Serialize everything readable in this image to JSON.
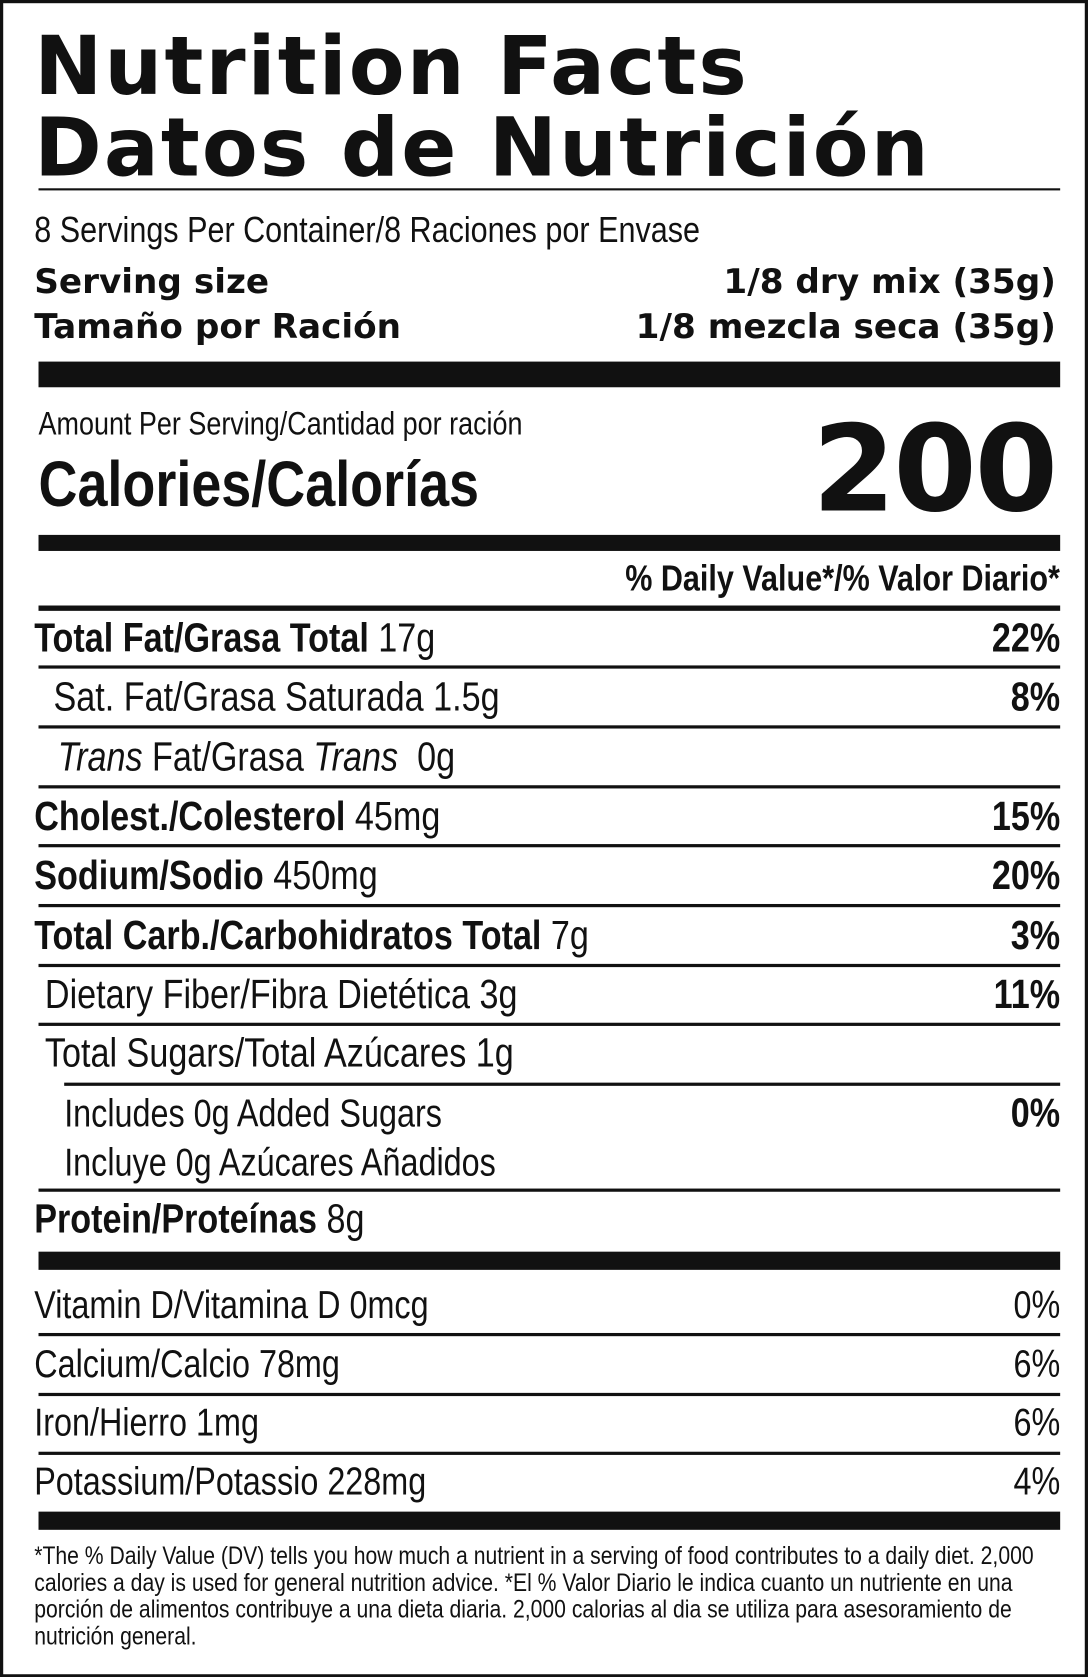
{
  "title_en": "Nutrition Facts",
  "title_es": "Datos de Nutrición",
  "servings": "8 Servings Per Container/8 Raciones por Envase",
  "serving_size": {
    "label": "Serving size",
    "value": "1/8 dry mix (35g)"
  },
  "tamano": {
    "label": "Tamaño por Ración",
    "value": "1/8 mezcla seca (35g)"
  },
  "amount_per_serving": "Amount Per Serving/Cantidad por ración",
  "calories_label": "Calories/Calorías",
  "calories_value": "200",
  "dv_header": "% Daily Value*/% Valor Diario*",
  "nutrients": [
    {
      "name": "Total Fat/Grasa Total",
      "amount": "17g",
      "dv": "22%"
    },
    {
      "name": "Sat. Fat/Grasa Saturada",
      "amount": "1.5g",
      "dv": "8%"
    },
    {
      "name_it": "Trans",
      "name_mid": " Fat/Grasa ",
      "name_it2": "Trans",
      "amount": "0g",
      "dv": ""
    },
    {
      "name": "Cholest./Colesterol",
      "amount": "45mg",
      "dv": "15%"
    },
    {
      "name": "Sodium/Sodio",
      "amount": "450mg",
      "dv": "20%"
    },
    {
      "name": "Total Carb./Carbohidratos Total",
      "amount": "7g",
      "dv": "3%"
    },
    {
      "name": "Dietary Fiber/Fibra Dietética",
      "amount": "3g",
      "dv": "11%"
    },
    {
      "name": "Total Sugars/Total Azúcares",
      "amount": "1g",
      "dv": ""
    },
    {
      "name": "Includes 0g Added Sugars",
      "name2": "Incluye 0g Azúcares Añadidos",
      "dv": "0%"
    },
    {
      "name": "Protein/Proteínas",
      "amount": "8g",
      "dv": ""
    }
  ],
  "vitamins": [
    {
      "label": "Vitamin D/Vitamina D 0mcg",
      "dv": "0%"
    },
    {
      "label": "Calcium/Calcio 78mg",
      "dv": "6%"
    },
    {
      "label": "Iron/Hierro 1mg",
      "dv": "6%"
    },
    {
      "label": "Potassium/Potassio 228mg",
      "dv": "4%"
    }
  ],
  "footnote": "*The % Daily Value (DV) tells you how much a nutrient in a serving of food contributes to a daily diet. 2,000 calories a day is used for general nutrition advice. *El % Valor Diario le indica cuanto un nutriente en una porción de alimentos contribuye a una dieta diaria. 2,000 calorias al dia se utiliza para asesoramiento de nutrición general."
}
